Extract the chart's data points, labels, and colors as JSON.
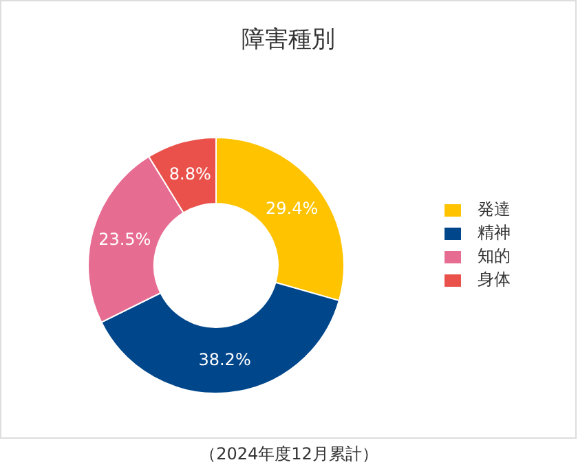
{
  "chart_data": {
    "type": "donut",
    "title": "障害種別",
    "categories": [
      "発達",
      "精神",
      "知的",
      "身体"
    ],
    "values": [
      29.4,
      38.2,
      23.5,
      8.8
    ],
    "colors": [
      "#ffc300",
      "#00468b",
      "#e76c91",
      "#e9514a"
    ],
    "value_labels": [
      "29.4%",
      "38.2%",
      "23.5%",
      "8.8%"
    ],
    "legend": "right",
    "annotations": [
      "（2024年度12月累計）"
    ]
  }
}
